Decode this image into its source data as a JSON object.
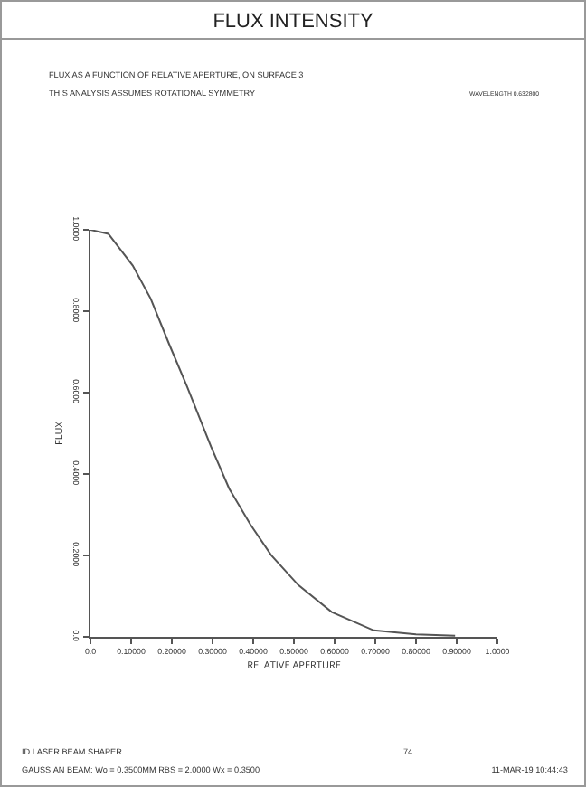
{
  "chart_data": {
    "type": "line",
    "title": "FLUX INTENSITY",
    "subtitle": "FLUX AS A FUNCTION OF RELATIVE APERTURE, ON SURFACE  3",
    "xlabel": "RELATIVE APERTURE",
    "ylabel": "FLUX",
    "annotations": [
      "THIS ANALYSIS ASSUMES ROTATIONAL SYMMETRY",
      "WAVELENGTH   0.632800",
      "ID LASER BEAM SHAPER",
      "74",
      "GAUSSIAN BEAM: Wo =   0.3500MM   RBS =   2.0000 Wx =   0.3500",
      "11-MAR-19  10:44:43"
    ],
    "series": [
      {
        "color": "#555555",
        "x": [
          0,
          0.044,
          0.104,
          0.148,
          0.193,
          0.237,
          0.296,
          0.341,
          0.393,
          0.444,
          0.511,
          0.593,
          0.696,
          0.8,
          0.896
        ],
        "values": [
          1.0,
          0.99,
          0.912,
          0.831,
          0.72,
          0.616,
          0.468,
          0.364,
          0.276,
          0.201,
          0.127,
          0.061,
          0.016,
          0.006,
          0.003
        ]
      }
    ],
    "xlim": [
      0,
      1
    ],
    "xticks": [
      {
        "value": 0,
        "label": "0.0"
      },
      {
        "value": 0.1,
        "label": "0.10000"
      },
      {
        "value": 0.2,
        "label": "0.20000"
      },
      {
        "value": 0.3,
        "label": "0.30000"
      },
      {
        "value": 0.4,
        "label": "0.40000"
      },
      {
        "value": 0.5,
        "label": "0.50000"
      },
      {
        "value": 0.6,
        "label": "0.60000"
      },
      {
        "value": 0.7,
        "label": "0.70000"
      },
      {
        "value": 0.8,
        "label": "0.80000"
      },
      {
        "value": 0.9,
        "label": "0.90000"
      },
      {
        "value": 1,
        "label": "1.0000"
      }
    ],
    "ylim": [
      0,
      1
    ],
    "yticks": [
      {
        "value": 0,
        "label": "0.0"
      },
      {
        "value": 0.2,
        "label": "0.2000"
      },
      {
        "value": 0.4,
        "label": "0.4000"
      },
      {
        "value": 0.6,
        "label": "0.6000"
      },
      {
        "value": 0.8,
        "label": "0.8000"
      },
      {
        "value": 1,
        "label": "1.0000"
      }
    ],
    "marker": "none",
    "line_style": "solid"
  }
}
